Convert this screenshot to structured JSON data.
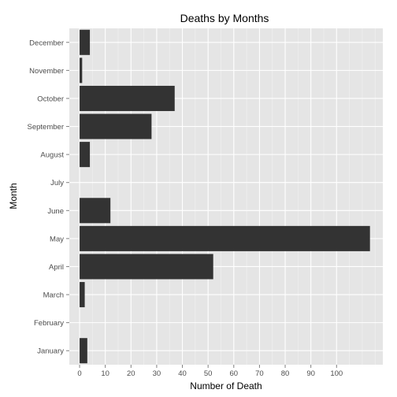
{
  "chart_data": {
    "type": "bar",
    "orientation": "horizontal",
    "title": "Deaths by Months",
    "xlabel": "Number of Death",
    "ylabel": "Month",
    "categories": [
      "January",
      "February",
      "March",
      "April",
      "May",
      "June",
      "July",
      "August",
      "September",
      "October",
      "November",
      "December"
    ],
    "values": [
      3,
      0,
      2,
      52,
      113,
      12,
      0,
      4,
      28,
      37,
      1,
      4
    ],
    "x_ticks": [
      0,
      10,
      20,
      30,
      40,
      50,
      60,
      70,
      80,
      90,
      100
    ],
    "xlim": [
      -4,
      118
    ],
    "grid": true,
    "legend": "none",
    "colors": {
      "panel_background": "#e5e5e5",
      "grid_major": "#ffffff",
      "grid_minor": "#f2f2f2",
      "bar_fill": "#333333",
      "tick_mark": "#7f7f7f"
    }
  }
}
